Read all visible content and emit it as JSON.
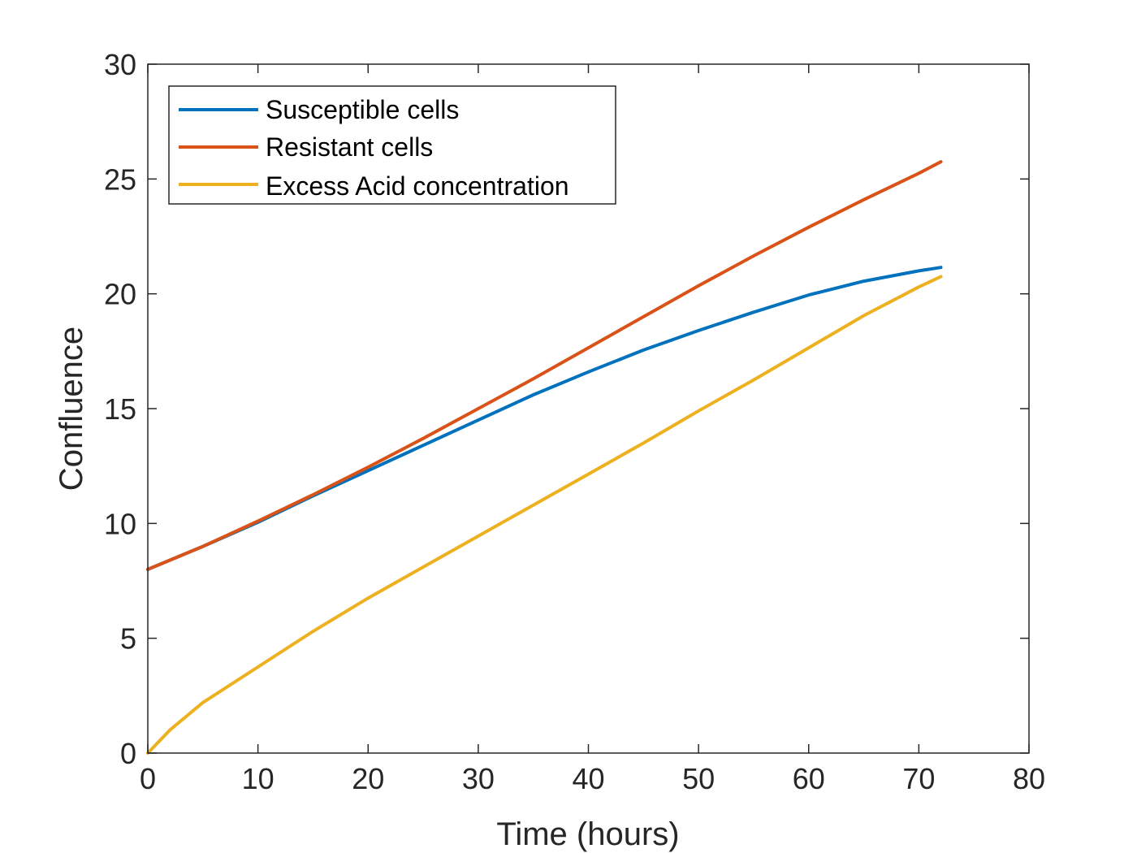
{
  "chart_data": {
    "type": "line",
    "xlabel": "Time (hours)",
    "ylabel": "Confluence",
    "xlim": [
      0,
      80
    ],
    "ylim": [
      0,
      30
    ],
    "xticks": [
      0,
      10,
      20,
      30,
      40,
      50,
      60,
      70,
      80
    ],
    "yticks": [
      0,
      5,
      10,
      15,
      20,
      25,
      30
    ],
    "x_tick_labels": [
      "0",
      "10",
      "20",
      "30",
      "40",
      "50",
      "60",
      "70",
      "80"
    ],
    "y_tick_labels": [
      "0",
      "5",
      "10",
      "15",
      "20",
      "25",
      "30"
    ],
    "grid": false,
    "legend_position": "top-left",
    "series": [
      {
        "name": "Susceptible cells",
        "color": "#0072BD",
        "x": [
          0,
          5,
          10,
          15,
          20,
          25,
          30,
          35,
          40,
          45,
          50,
          55,
          60,
          65,
          70,
          72
        ],
        "y": [
          8.0,
          9.0,
          10.05,
          11.2,
          12.3,
          13.4,
          14.5,
          15.6,
          16.6,
          17.55,
          18.4,
          19.2,
          19.95,
          20.55,
          21.0,
          21.15
        ]
      },
      {
        "name": "Resistant cells",
        "color": "#D95319",
        "x": [
          0,
          5,
          10,
          15,
          20,
          25,
          30,
          35,
          40,
          45,
          50,
          55,
          60,
          65,
          70,
          72
        ],
        "y": [
          8.0,
          9.0,
          10.1,
          11.25,
          12.45,
          13.7,
          15.0,
          16.3,
          17.65,
          19.0,
          20.35,
          21.65,
          22.9,
          24.1,
          25.25,
          25.75
        ]
      },
      {
        "name": "Excess Acid concentration",
        "color": "#EDB120",
        "x": [
          0,
          2,
          5,
          10,
          15,
          20,
          25,
          30,
          35,
          40,
          45,
          50,
          55,
          60,
          65,
          70,
          72
        ],
        "y": [
          0.0,
          1.0,
          2.2,
          3.75,
          5.3,
          6.75,
          8.1,
          9.45,
          10.8,
          12.15,
          13.5,
          14.9,
          16.25,
          17.65,
          19.05,
          20.3,
          20.75
        ]
      }
    ]
  }
}
